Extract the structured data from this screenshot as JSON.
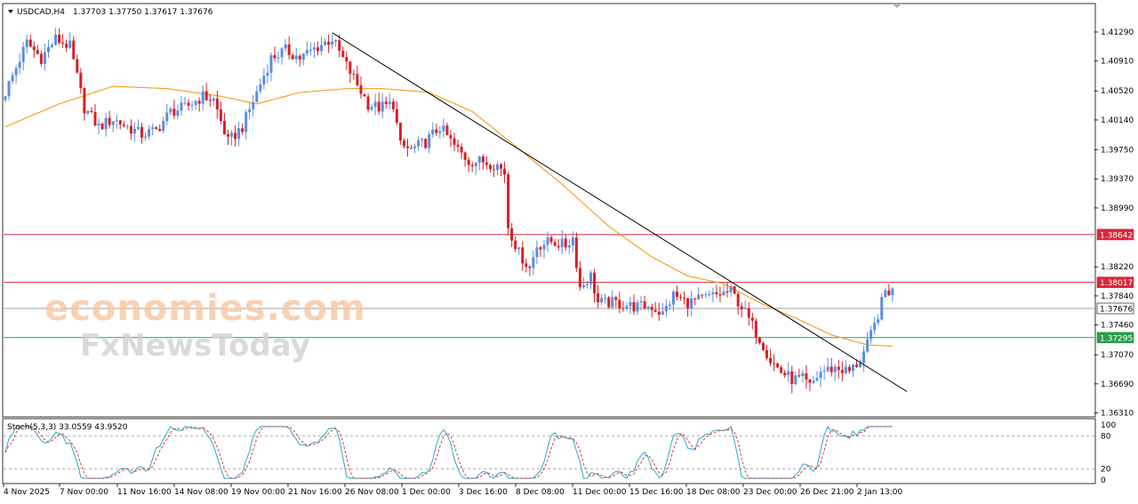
{
  "chart_header": {
    "symbol_tf": "USDCAD,H4",
    "ohlc": "1.37703 1.37750 1.37617 1.37676"
  },
  "stoch_header": "Stoch(5,3,3) 33.0559 43.9520",
  "watermark": {
    "line1": "economies.com",
    "line2": "FxNewsToday"
  },
  "chart_data": {
    "type": "candlestick",
    "price_axis": {
      "ticks": [
        "1.41290",
        "1.40910",
        "1.40520",
        "1.40140",
        "1.39750",
        "1.39370",
        "1.38990",
        "1.38220",
        "1.37840",
        "1.37460",
        "1.37070",
        "1.36690",
        "1.36310"
      ],
      "range": [
        1.3627,
        1.4165
      ]
    },
    "x_labels": [
      "4 Nov 2025",
      "7 Nov 00:00",
      "11 Nov 16:00",
      "14 Nov 08:00",
      "19 Nov 00:00",
      "21 Nov 16:00",
      "26 Nov 08:00",
      "1 Dec 00:00",
      "3 Dec 16:00",
      "8 Dec 08:00",
      "11 Dec 00:00",
      "15 Dec 16:00",
      "18 Dec 08:00",
      "23 Dec 00:00",
      "26 Dec 21:00",
      "2 Jan 13:00"
    ],
    "bar_count": 248,
    "levels": [
      {
        "label": "1.38642",
        "value": 1.38642,
        "color": "#d62839"
      },
      {
        "label": "1.38017",
        "value": 1.38017,
        "color": "#d62839"
      },
      {
        "label": "1.37676",
        "value": 1.37676,
        "color": "#9e9e9e"
      },
      {
        "label": "1.37295",
        "value": 1.37295,
        "color": "#2e9d4a"
      }
    ],
    "trendline": {
      "from": {
        "bar": 91,
        "price": 1.4128
      },
      "to": {
        "bar": 251,
        "price": 1.3659
      }
    },
    "moving_average_color": "#f59b1a",
    "bull_color": "#5b8ede",
    "bear_color": "#d81f26",
    "anchors": [
      [
        0,
        1.405
      ],
      [
        6,
        1.4115
      ],
      [
        10,
        1.4095
      ],
      [
        14,
        1.412
      ],
      [
        18,
        1.411
      ],
      [
        22,
        1.403
      ],
      [
        26,
        1.4005
      ],
      [
        30,
        1.4015
      ],
      [
        34,
        1.4005
      ],
      [
        38,
        1.3995
      ],
      [
        42,
        1.4
      ],
      [
        46,
        1.4025
      ],
      [
        50,
        1.403
      ],
      [
        55,
        1.4045
      ],
      [
        58,
        1.404
      ],
      [
        62,
        1.3985
      ],
      [
        66,
        1.4005
      ],
      [
        70,
        1.405
      ],
      [
        74,
        1.4095
      ],
      [
        78,
        1.4105
      ],
      [
        82,
        1.4095
      ],
      [
        87,
        1.411
      ],
      [
        91,
        1.412
      ],
      [
        95,
        1.4085
      ],
      [
        98,
        1.406
      ],
      [
        101,
        1.4035
      ],
      [
        104,
        1.403
      ],
      [
        108,
        1.4035
      ],
      [
        110,
        1.398
      ],
      [
        113,
        1.3975
      ],
      [
        117,
        1.3985
      ],
      [
        121,
        1.4005
      ],
      [
        125,
        1.398
      ],
      [
        129,
        1.396
      ],
      [
        133,
        1.396
      ],
      [
        137,
        1.3955
      ],
      [
        139,
        1.3945
      ],
      [
        140,
        1.3875
      ],
      [
        143,
        1.384
      ],
      [
        146,
        1.382
      ],
      [
        148,
        1.385
      ],
      [
        152,
        1.3855
      ],
      [
        156,
        1.385
      ],
      [
        158,
        1.386
      ],
      [
        160,
        1.3795
      ],
      [
        163,
        1.381
      ],
      [
        165,
        1.3775
      ],
      [
        170,
        1.3775
      ],
      [
        175,
        1.377
      ],
      [
        180,
        1.377
      ],
      [
        183,
        1.376
      ],
      [
        186,
        1.3785
      ],
      [
        190,
        1.3775
      ],
      [
        194,
        1.378
      ],
      [
        198,
        1.3785
      ],
      [
        202,
        1.379
      ],
      [
        205,
        1.377
      ],
      [
        208,
        1.3745
      ],
      [
        211,
        1.372
      ],
      [
        213,
        1.37
      ],
      [
        216,
        1.3685
      ],
      [
        219,
        1.3675
      ],
      [
        222,
        1.3675
      ],
      [
        224,
        1.3665
      ],
      [
        227,
        1.3685
      ],
      [
        231,
        1.369
      ],
      [
        235,
        1.3685
      ],
      [
        238,
        1.37
      ],
      [
        240,
        1.372
      ],
      [
        242,
        1.3745
      ],
      [
        245,
        1.379
      ],
      [
        247,
        1.379
      ],
      [
        248,
        1.3768
      ]
    ],
    "ma_anchors": [
      [
        0,
        1.4005
      ],
      [
        15,
        1.4035
      ],
      [
        30,
        1.4058
      ],
      [
        45,
        1.4055
      ],
      [
        60,
        1.4045
      ],
      [
        70,
        1.4035
      ],
      [
        82,
        1.405
      ],
      [
        95,
        1.4055
      ],
      [
        105,
        1.4055
      ],
      [
        118,
        1.405
      ],
      [
        130,
        1.4025
      ],
      [
        142,
        1.398
      ],
      [
        155,
        1.393
      ],
      [
        168,
        1.3875
      ],
      [
        180,
        1.3835
      ],
      [
        190,
        1.381
      ],
      [
        200,
        1.38
      ],
      [
        210,
        1.3775
      ],
      [
        220,
        1.3755
      ],
      [
        230,
        1.3733
      ],
      [
        240,
        1.372
      ],
      [
        248,
        1.3718
      ]
    ],
    "stoch": {
      "range": [
        0,
        100
      ],
      "levels": [
        80,
        20
      ],
      "axis_labels": [
        "100",
        "80",
        "20",
        "0"
      ],
      "k_color": "#2aa9c9",
      "d_color": "#d62839"
    }
  }
}
